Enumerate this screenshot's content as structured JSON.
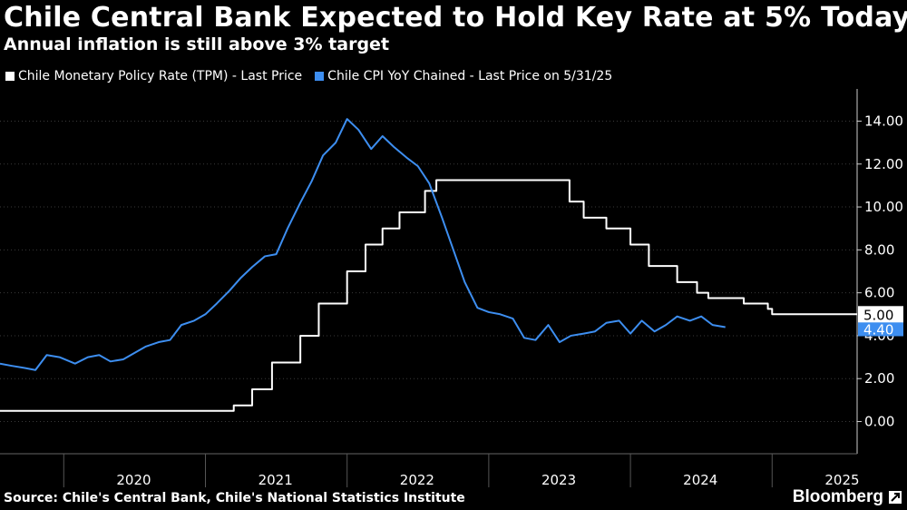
{
  "title": "Chile Central Bank Expected to Hold Key Rate at 5% Today",
  "subtitle": "Annual inflation is still above 3% target",
  "source": "Source: Chile's Central Bank, Chile's National Statistics Institute",
  "brand": "Bloomberg",
  "brand_icon": "bloomberg-logo-icon",
  "colors": {
    "background": "#000000",
    "grid": "#3a3a3a",
    "tpm": "#ffffff",
    "cpi": "#3d8ef0",
    "text": "#ffffff"
  },
  "chart_data": {
    "type": "line",
    "title": "Chile Central Bank Expected to Hold Key Rate at 5% Today",
    "subtitle": "Annual inflation is still above 3% target",
    "x_unit": "year",
    "x_range": [
      2019.55,
      2025.6
    ],
    "x_ticks": [
      2020,
      2021,
      2022,
      2023,
      2024,
      2025
    ],
    "ylim": [
      -1.5,
      15.5
    ],
    "y_ticks": [
      0,
      2,
      4,
      6,
      8,
      10,
      12,
      14
    ],
    "y_tick_labels": [
      "0.00",
      "2.00",
      "4.00",
      "6.00",
      "8.00",
      "10.00",
      "12.00",
      "14.00"
    ],
    "grid": "horizontal dotted",
    "legend_position": "top-left",
    "series": [
      {
        "name": "Chile Monetary Policy Rate (TPM) - Last Price",
        "color": "#ffffff",
        "step": true,
        "last_value_label": "5.00",
        "points": [
          [
            2019.55,
            0.5
          ],
          [
            2021.2,
            0.75
          ],
          [
            2021.33,
            1.5
          ],
          [
            2021.47,
            2.75
          ],
          [
            2021.67,
            4.0
          ],
          [
            2021.8,
            5.5
          ],
          [
            2022.0,
            7.0
          ],
          [
            2022.13,
            8.25
          ],
          [
            2022.25,
            9.0
          ],
          [
            2022.37,
            9.75
          ],
          [
            2022.55,
            10.75
          ],
          [
            2022.63,
            11.25
          ],
          [
            2023.57,
            10.25
          ],
          [
            2023.67,
            9.5
          ],
          [
            2023.83,
            9.0
          ],
          [
            2024.0,
            8.25
          ],
          [
            2024.13,
            7.25
          ],
          [
            2024.33,
            6.5
          ],
          [
            2024.47,
            6.0
          ],
          [
            2024.55,
            5.75
          ],
          [
            2024.8,
            5.5
          ],
          [
            2024.97,
            5.25
          ],
          [
            2025.0,
            5.0
          ],
          [
            2025.6,
            5.0
          ]
        ]
      },
      {
        "name": "Chile CPI YoY Chained - Last Price on 5/31/25",
        "color": "#3d8ef0",
        "step": false,
        "last_value_label": "4.40",
        "points": [
          [
            2019.55,
            2.7
          ],
          [
            2019.63,
            2.6
          ],
          [
            2019.72,
            2.5
          ],
          [
            2019.8,
            2.4
          ],
          [
            2019.88,
            3.1
          ],
          [
            2019.97,
            3.0
          ],
          [
            2020.08,
            2.7
          ],
          [
            2020.17,
            3.0
          ],
          [
            2020.25,
            3.1
          ],
          [
            2020.33,
            2.8
          ],
          [
            2020.42,
            2.9
          ],
          [
            2020.5,
            3.2
          ],
          [
            2020.58,
            3.5
          ],
          [
            2020.67,
            3.7
          ],
          [
            2020.75,
            3.8
          ],
          [
            2020.83,
            4.5
          ],
          [
            2020.92,
            4.7
          ],
          [
            2021.0,
            5.0
          ],
          [
            2021.08,
            5.5
          ],
          [
            2021.17,
            6.1
          ],
          [
            2021.25,
            6.7
          ],
          [
            2021.33,
            7.2
          ],
          [
            2021.42,
            7.7
          ],
          [
            2021.5,
            7.8
          ],
          [
            2021.58,
            9.0
          ],
          [
            2021.67,
            10.2
          ],
          [
            2021.75,
            11.2
          ],
          [
            2021.83,
            12.4
          ],
          [
            2021.92,
            13.0
          ],
          [
            2022.0,
            14.1
          ],
          [
            2022.08,
            13.6
          ],
          [
            2022.17,
            12.7
          ],
          [
            2022.25,
            13.3
          ],
          [
            2022.33,
            12.8
          ],
          [
            2022.42,
            12.3
          ],
          [
            2022.5,
            11.9
          ],
          [
            2022.58,
            11.1
          ],
          [
            2022.67,
            9.5
          ],
          [
            2022.75,
            8.0
          ],
          [
            2022.83,
            6.5
          ],
          [
            2022.92,
            5.3
          ],
          [
            2023.0,
            5.1
          ],
          [
            2023.08,
            5.0
          ],
          [
            2023.17,
            4.8
          ],
          [
            2023.25,
            3.9
          ],
          [
            2023.33,
            3.8
          ],
          [
            2023.42,
            4.5
          ],
          [
            2023.5,
            3.7
          ],
          [
            2023.58,
            4.0
          ],
          [
            2023.67,
            4.1
          ],
          [
            2023.75,
            4.2
          ],
          [
            2023.83,
            4.6
          ],
          [
            2023.92,
            4.7
          ],
          [
            2024.0,
            4.1
          ],
          [
            2024.08,
            4.7
          ],
          [
            2024.17,
            4.2
          ],
          [
            2024.25,
            4.5
          ],
          [
            2024.33,
            4.9
          ],
          [
            2024.42,
            4.7
          ],
          [
            2024.5,
            4.9
          ],
          [
            2024.58,
            4.5
          ],
          [
            2024.67,
            4.4
          ]
        ]
      }
    ]
  }
}
